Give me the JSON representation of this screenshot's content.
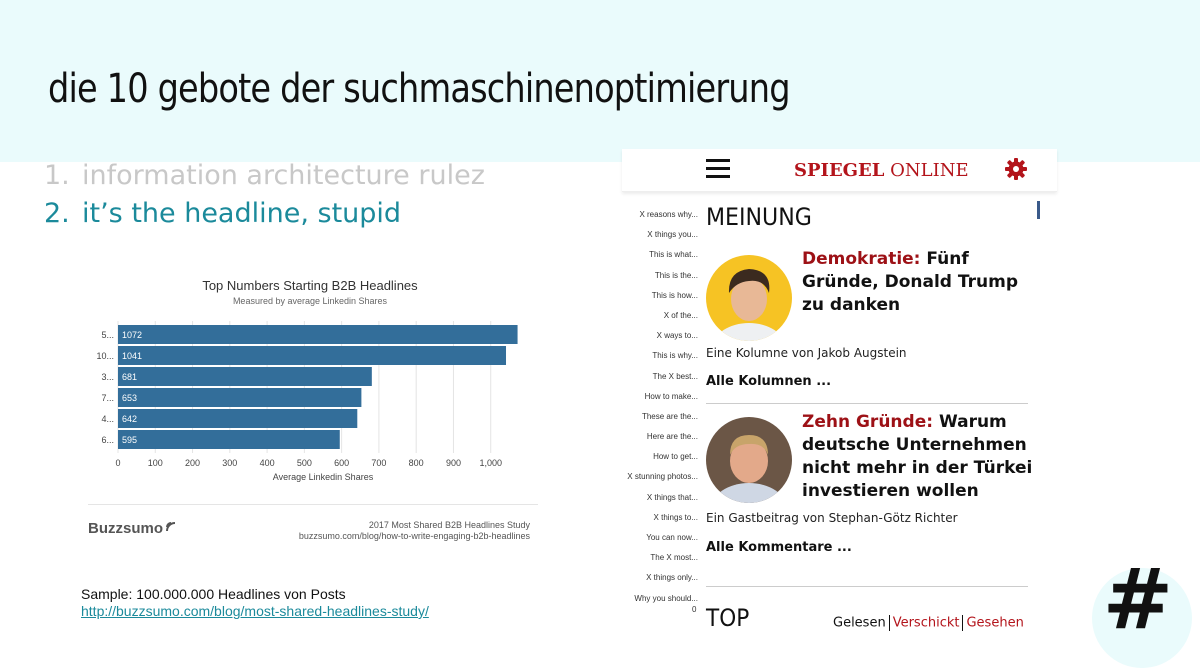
{
  "slide": {
    "title": "die 10 gebote der suchmaschinenoptimierung",
    "list": [
      {
        "num": "1.",
        "text": "information architecture rulez"
      },
      {
        "num": "2.",
        "text": "it’s the headline, stupid"
      }
    ],
    "sample_text": "Sample: 100.000.000 Headlines von Posts",
    "sample_link": "http://buzzsumo.com/blog/most-shared-headlines-study/",
    "hash_symbol": "#"
  },
  "chart_data": {
    "type": "bar",
    "orientation": "horizontal",
    "title": "Top Numbers Starting B2B Headlines",
    "subtitle": "Measured by average Linkedin Shares",
    "xlabel": "Average Linkedin Shares",
    "categories": [
      "5...",
      "10...",
      "3...",
      "7...",
      "4...",
      "6..."
    ],
    "values": [
      1072,
      1041,
      681,
      653,
      642,
      595
    ],
    "data_labels": [
      "1072",
      "1041",
      "681",
      "653",
      "642",
      "595"
    ],
    "xticks": [
      "0",
      "100",
      "200",
      "300",
      "400",
      "500",
      "600",
      "700",
      "800",
      "900",
      "1,000"
    ],
    "xlim": [
      0,
      1100
    ],
    "bar_color": "#336e9a",
    "grid": true,
    "brand": "Buzzsumo",
    "source_line1": "2017 Most Shared B2B Headlines Study",
    "source_line2": "buzzsumo.com/blog/how-to-write-engaging-b2b-headlines"
  },
  "phone": {
    "logo_bold": "SPIEGEL",
    "logo_rest": "ONLINE",
    "menu_icon": "hamburger-icon",
    "settings_icon": "gear-icon",
    "phrases": [
      "X reasons why...",
      "X things you...",
      "This is what...",
      "This is the...",
      "This is how...",
      "X of the...",
      "X ways to...",
      "This is why...",
      "The X best...",
      "How to make...",
      "These are the...",
      "Here are the...",
      "How to get...",
      "X stunning photos...",
      "X things that...",
      "X things to...",
      "You can now...",
      "The X most...",
      "X things only...",
      "Why you should..."
    ],
    "tick_zero": "0",
    "section": "MEINUNG",
    "articles": [
      {
        "kicker": "Demokratie:",
        "headline": " Fünf Gründe, Donald Trump zu danken",
        "byline": "Eine Kolumne von Jakob Augstein",
        "more": "Alle Kolumnen ..."
      },
      {
        "kicker": "Zehn Gründe:",
        "headline": " Warum deutsche Unternehmen nicht mehr in der Türkei investieren wollen",
        "byline": "Ein Gastbeitrag von Stephan-Götz Richter",
        "more": "Alle Kommentare ..."
      }
    ],
    "top_label": "TOP",
    "tabs": [
      "Gelesen",
      "Verschickt",
      "Gesehen"
    ]
  }
}
